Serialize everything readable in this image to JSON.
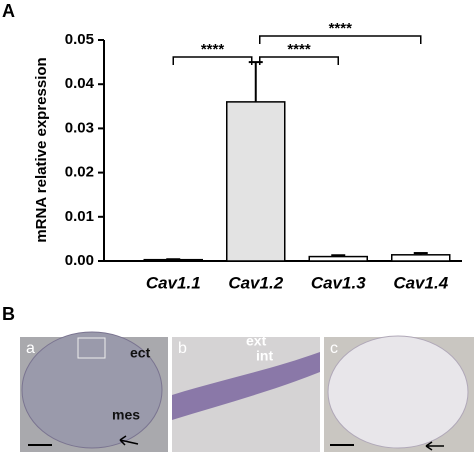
{
  "chart_data": {
    "type": "bar",
    "panel_label": "A",
    "y_label": "mRNA relative expression",
    "categories": [
      "Cav1.1",
      "Cav1.2",
      "Cav1.3",
      "Cav1.4"
    ],
    "values": [
      0.0003,
      0.036,
      0.001,
      0.0014
    ],
    "errors": [
      0.0001,
      0.009,
      0.0003,
      0.0004
    ],
    "colors": [
      "#ffffff",
      "#e3e3e3",
      "#ffffff",
      "#ffffff"
    ],
    "ylim": [
      0,
      0.05
    ],
    "yticks": [
      {
        "value": 0,
        "label": "0.00"
      },
      0.01,
      0.02,
      0.03,
      0.04,
      0.05
    ],
    "significance": [
      {
        "pair": [
          0,
          1
        ],
        "label": "****"
      },
      {
        "pair": [
          1,
          2
        ],
        "label": "****"
      },
      {
        "pair": [
          1,
          3
        ],
        "label": "****"
      }
    ]
  },
  "panel_b": {
    "label": "B",
    "images": [
      {
        "letter": "a",
        "labels": [
          "ect",
          "mes"
        ]
      },
      {
        "letter": "b",
        "labels": [
          "ext",
          "int"
        ]
      },
      {
        "letter": "c",
        "labels": []
      }
    ]
  }
}
